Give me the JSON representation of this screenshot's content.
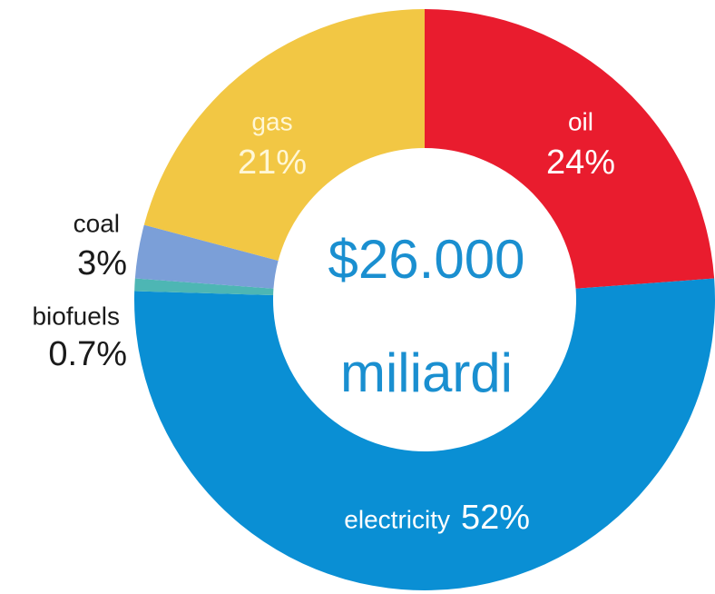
{
  "chart_data": {
    "type": "donut",
    "categories": [
      "oil",
      "electricity",
      "biofuels",
      "coal",
      "gas"
    ],
    "values": [
      24,
      52,
      0.7,
      3,
      21
    ],
    "value_labels": [
      "24%",
      "52%",
      "0.7%",
      "3%",
      "21%"
    ],
    "colors": [
      "#e91c2e",
      "#0a8fd4",
      "#4db6b4",
      "#7b9fd8",
      "#f2c744"
    ],
    "center_text": [
      "$26.000",
      "miliardi"
    ]
  }
}
